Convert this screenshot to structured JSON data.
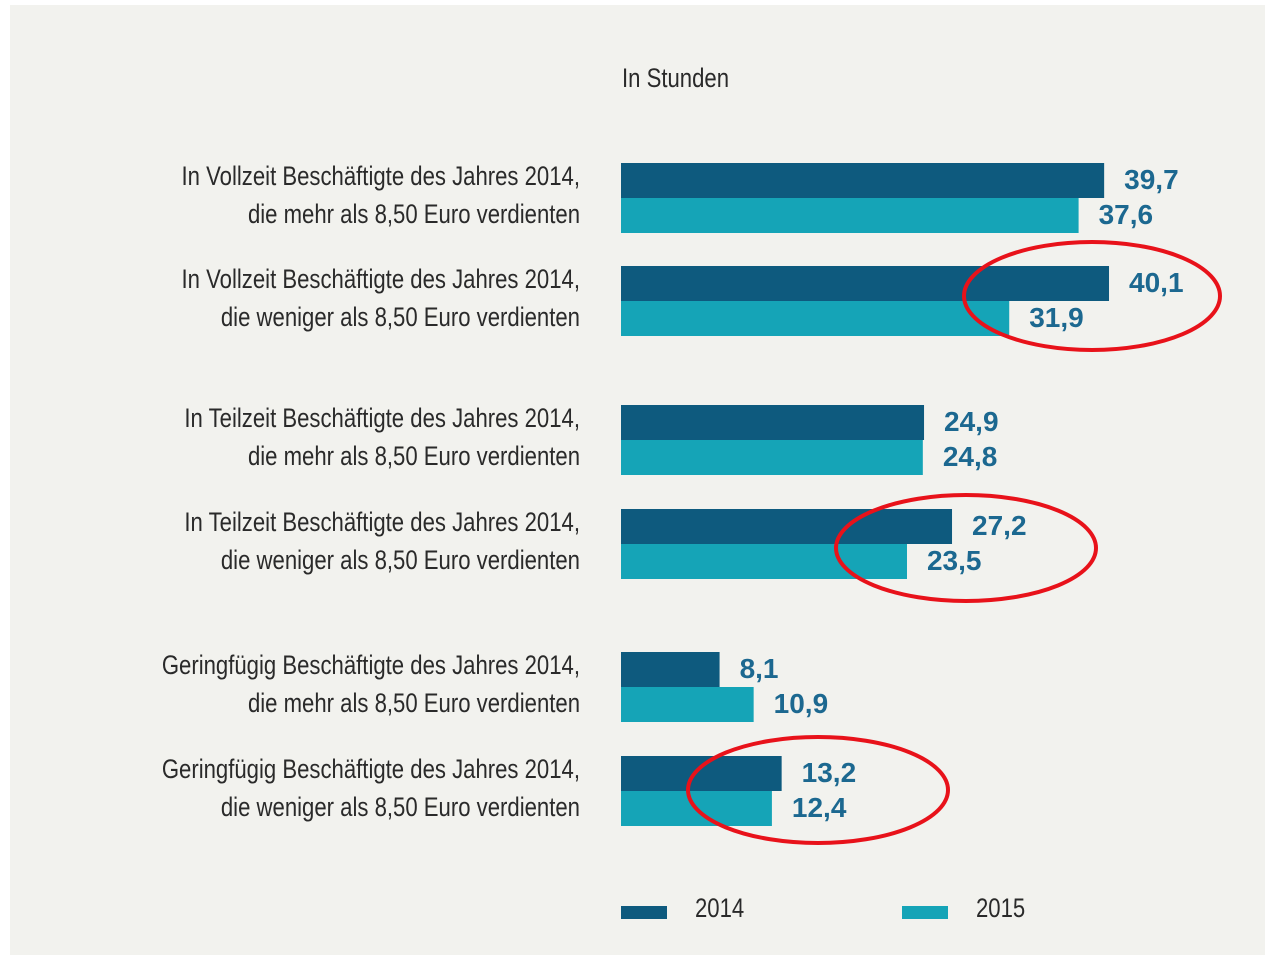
{
  "chart_data": {
    "type": "barh",
    "subtitle": "In Stunden",
    "categories": [
      [
        "In Vollzeit Beschäftigte des Jahres 2014,",
        "die mehr als 8,50 Euro verdienten"
      ],
      [
        "In Vollzeit Beschäftigte des Jahres 2014,",
        "die weniger als 8,50 Euro verdienten"
      ],
      [
        "In Teilzeit Beschäftigte des Jahres 2014,",
        "die mehr als 8,50 Euro verdienten"
      ],
      [
        "In Teilzeit Beschäftigte des Jahres 2014,",
        "die weniger als 8,50 Euro verdienten"
      ],
      [
        "Geringfügig Beschäftigte des Jahres 2014,",
        "die mehr als 8,50 Euro verdienten"
      ],
      [
        "Geringfügig Beschäftigte des Jahres 2014,",
        "die weniger als 8,50 Euro verdienten"
      ]
    ],
    "series": [
      {
        "name": "2014",
        "color": "#0e5a7e",
        "values": [
          39.7,
          40.1,
          24.9,
          27.2,
          8.1,
          13.2
        ],
        "value_labels": [
          "39,7",
          "40,1",
          "24,9",
          "27,2",
          "8,1",
          "13,2"
        ]
      },
      {
        "name": "2015",
        "color": "#15a4b7",
        "values": [
          37.6,
          31.9,
          24.8,
          23.5,
          10.9,
          12.4
        ],
        "value_labels": [
          "37,6",
          "31,9",
          "24,8",
          "23,5",
          "10,9",
          "12,4"
        ]
      }
    ]
  }
}
